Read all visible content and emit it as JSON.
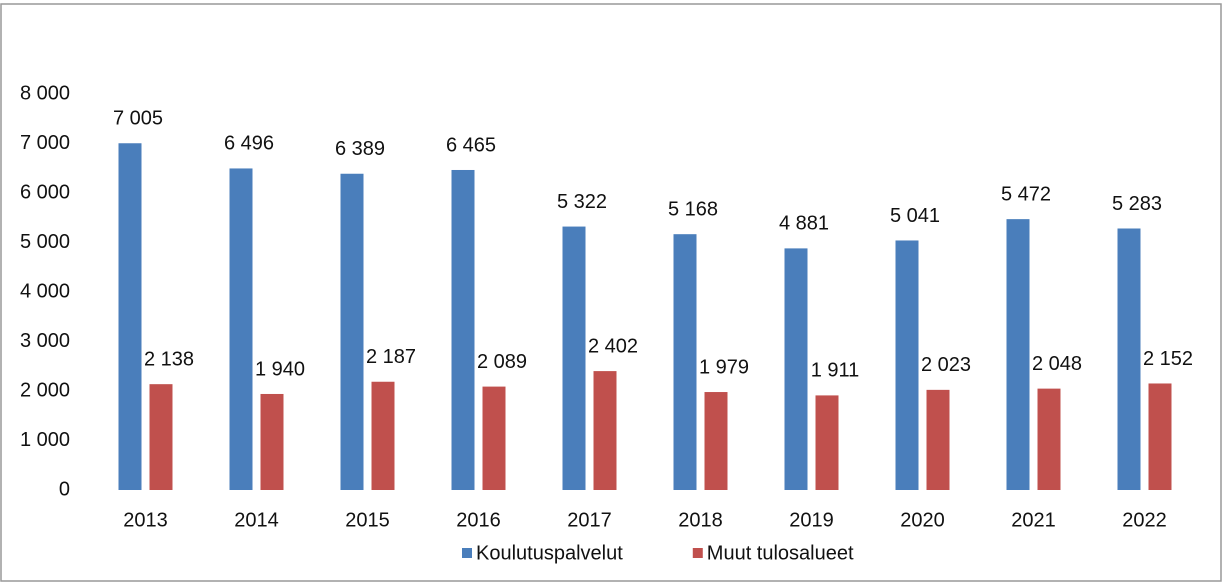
{
  "chart_data": {
    "type": "bar",
    "categories": [
      "2013",
      "2014",
      "2015",
      "2016",
      "2017",
      "2018",
      "2019",
      "2020",
      "2021",
      "2022"
    ],
    "series": [
      {
        "name": "Koulutuspalvelut",
        "color": "#4a7ebb",
        "values": [
          7005,
          6496,
          6389,
          6465,
          5322,
          5168,
          4881,
          5041,
          5472,
          5283
        ],
        "value_labels": [
          "7 005",
          "6 496",
          "6 389",
          "6 465",
          "5 322",
          "5 168",
          "4 881",
          "5 041",
          "5 472",
          "5 283"
        ]
      },
      {
        "name": "Muut tulosalueet",
        "color": "#c0504d",
        "values": [
          2138,
          1940,
          2187,
          2089,
          2402,
          1979,
          1911,
          2023,
          2048,
          2152
        ],
        "value_labels": [
          "2 138",
          "1 940",
          "2 187",
          "2 089",
          "2 402",
          "1 979",
          "1 911",
          "2 023",
          "2 048",
          "2 152"
        ]
      }
    ],
    "ylim": [
      0,
      8000
    ],
    "yticks": [
      0,
      {
        "value": 1000,
        "label": "1 000"
      },
      {
        "value": 2000,
        "label": "2 000"
      },
      {
        "value": 3000,
        "label": "3 000"
      },
      {
        "value": 4000,
        "label": "4 000"
      },
      {
        "value": 5000,
        "label": "5 000"
      },
      {
        "value": 6000,
        "label": "6 000"
      },
      {
        "value": 7000,
        "label": "7 000"
      },
      {
        "value": 8000,
        "label": "8 000"
      }
    ],
    "grid": false,
    "legend": "bottom"
  }
}
